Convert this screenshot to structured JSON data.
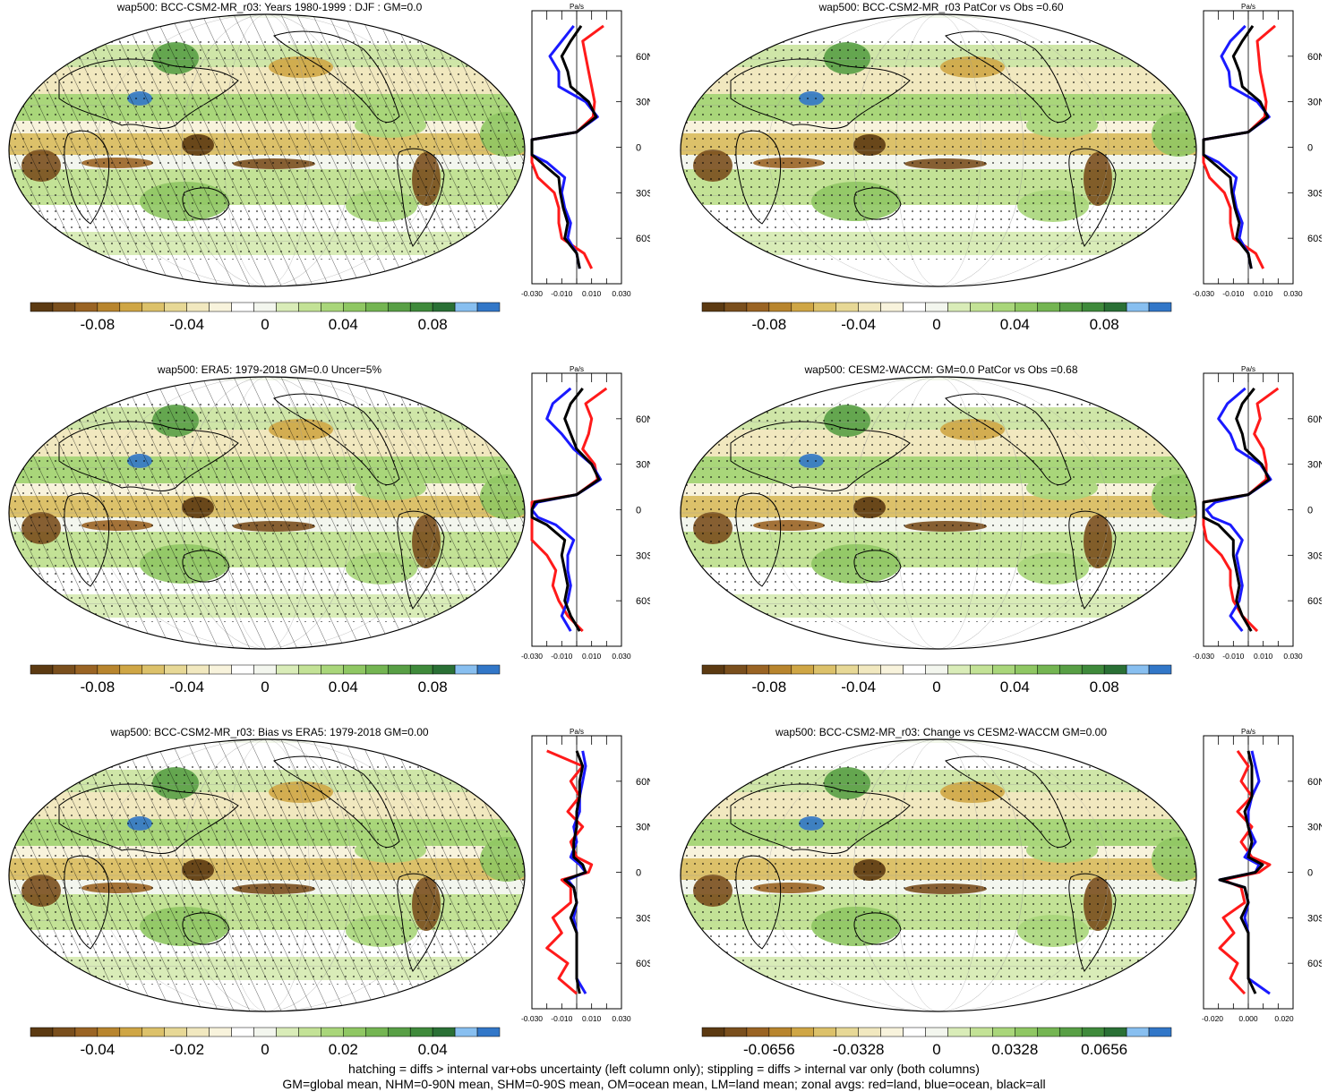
{
  "figure": {
    "footer_lines": [
      "hatching = diffs > internal var+obs uncertainty (left column only); stippling = diffs > internal var only (both columns)",
      "GM=global mean, NHM=0-90N mean, SHM=0-90S mean, OM=ocean mean, LM=land mean; zonal avgs: red=land, blue=ocean, black=all"
    ]
  },
  "colors": {
    "land": "#ff1a1a",
    "ocean": "#1a1aff",
    "all": "#000000",
    "colorbar": [
      "#5c3a12",
      "#7a4f1d",
      "#9a6424",
      "#b8852e",
      "#cfa645",
      "#dcc16a",
      "#e7d896",
      "#f1e8bf",
      "#f8f3dc",
      "#ffffff",
      "#f3f6ee",
      "#d9ecb8",
      "#c3e296",
      "#a9d67a",
      "#8fc763",
      "#74b552",
      "#589f45",
      "#3f8a3b",
      "#2a7035",
      "#88bff0",
      "#3277c8"
    ]
  },
  "chart_data": [
    {
      "type": "heatmap",
      "title": "wap500: BCC-CSM2-MR_r03: Years 1980-1999 : DJF : GM=0.0",
      "colorbar_ticks": [
        "-0.08",
        "-0.04",
        "0",
        "0.04",
        "0.08"
      ],
      "hatched": true,
      "zonal": {
        "unit": "Pa/s",
        "lat_ticks": [
          "60N",
          "30N",
          "0",
          "30S",
          "60S"
        ],
        "x_ticks": [
          "-0.030",
          "-0.010",
          "0.010",
          "0.030"
        ],
        "xlim": [
          -0.03,
          0.03
        ],
        "lat": [
          80,
          70,
          60,
          50,
          40,
          30,
          20,
          10,
          5,
          0,
          -5,
          -10,
          -20,
          -30,
          -40,
          -50,
          -60,
          -70,
          -80
        ],
        "land": [
          0.018,
          0.004,
          0.006,
          0.008,
          0.01,
          0.012,
          0.011,
          0.0,
          -0.04,
          -0.04,
          -0.04,
          -0.032,
          -0.026,
          -0.015,
          -0.012,
          -0.012,
          -0.01,
          0.005,
          0.01
        ],
        "ocean": [
          -0.002,
          -0.01,
          -0.018,
          -0.012,
          -0.012,
          0.006,
          0.014,
          0.0,
          -0.03,
          -0.04,
          -0.04,
          -0.02,
          -0.008,
          -0.01,
          -0.008,
          -0.004,
          -0.006,
          0.0,
          0.002
        ],
        "all": [
          0.003,
          -0.004,
          -0.01,
          -0.006,
          -0.004,
          0.008,
          0.013,
          0.0,
          -0.03,
          -0.04,
          -0.036,
          -0.024,
          -0.012,
          -0.011,
          -0.009,
          -0.006,
          -0.008,
          0.0,
          0.002
        ]
      }
    },
    {
      "type": "heatmap",
      "title": "wap500: BCC-CSM2-MR_r03 PatCor vs Obs =0.60",
      "colorbar_ticks": [
        "-0.08",
        "-0.04",
        "0",
        "0.04",
        "0.08"
      ],
      "hatched": false,
      "zonal": {
        "unit": "Pa/s",
        "lat_ticks": [
          "60N",
          "30N",
          "0",
          "30S",
          "60S"
        ],
        "x_ticks": [
          "-0.030",
          "-0.010",
          "0.010",
          "0.030"
        ],
        "xlim": [
          -0.03,
          0.03
        ],
        "lat": [
          80,
          70,
          60,
          50,
          40,
          30,
          20,
          10,
          5,
          0,
          -5,
          -10,
          -20,
          -30,
          -40,
          -50,
          -60,
          -70,
          -80
        ],
        "land": [
          0.018,
          0.006,
          0.007,
          0.008,
          0.01,
          0.012,
          0.011,
          0.0,
          -0.04,
          -0.04,
          -0.04,
          -0.032,
          -0.026,
          -0.016,
          -0.012,
          -0.012,
          -0.01,
          0.005,
          0.01
        ],
        "ocean": [
          -0.002,
          -0.012,
          -0.018,
          -0.013,
          -0.012,
          0.006,
          0.014,
          0.0,
          -0.03,
          -0.04,
          -0.04,
          -0.02,
          -0.008,
          -0.01,
          -0.008,
          -0.004,
          -0.006,
          0.0,
          0.002
        ],
        "all": [
          0.003,
          -0.004,
          -0.01,
          -0.006,
          -0.004,
          0.008,
          0.013,
          0.0,
          -0.03,
          -0.04,
          -0.036,
          -0.024,
          -0.012,
          -0.011,
          -0.009,
          -0.006,
          -0.008,
          0.0,
          0.002
        ]
      }
    },
    {
      "type": "heatmap",
      "title": "wap500: ERA5: 1979-2018 GM=0.0 Uncer=5%",
      "colorbar_ticks": [
        "-0.08",
        "-0.04",
        "0",
        "0.04",
        "0.08"
      ],
      "hatched": true,
      "zonal": {
        "unit": "Pa/s",
        "lat_ticks": [
          "60N",
          "30N",
          "0",
          "30S",
          "60S"
        ],
        "x_ticks": [
          "-0.030",
          "-0.010",
          "0.010",
          "0.030"
        ],
        "xlim": [
          -0.03,
          0.03
        ],
        "lat": [
          80,
          70,
          60,
          50,
          40,
          30,
          20,
          10,
          5,
          0,
          -5,
          -10,
          -20,
          -30,
          -40,
          -50,
          -60,
          -70,
          -80
        ],
        "land": [
          0.02,
          0.006,
          0.01,
          0.008,
          0.004,
          0.012,
          0.014,
          0.0,
          -0.04,
          -0.04,
          -0.04,
          -0.036,
          -0.03,
          -0.02,
          -0.014,
          -0.016,
          -0.012,
          -0.006,
          0.004
        ],
        "ocean": [
          -0.004,
          -0.016,
          -0.02,
          -0.01,
          -0.002,
          0.01,
          0.016,
          0.0,
          -0.026,
          -0.03,
          -0.026,
          -0.014,
          -0.002,
          -0.006,
          -0.006,
          -0.004,
          -0.006,
          -0.01,
          -0.004
        ],
        "all": [
          0.004,
          -0.004,
          -0.008,
          -0.004,
          0.0,
          0.01,
          0.015,
          0.0,
          -0.028,
          -0.034,
          -0.03,
          -0.02,
          -0.008,
          -0.01,
          -0.008,
          -0.006,
          -0.008,
          -0.004,
          0.002
        ]
      }
    },
    {
      "type": "heatmap",
      "title": "wap500: CESM2-WACCM: GM=0.0 PatCor vs Obs =0.68",
      "colorbar_ticks": [
        "-0.08",
        "-0.04",
        "0",
        "0.04",
        "0.08"
      ],
      "hatched": false,
      "zonal": {
        "unit": "Pa/s",
        "lat_ticks": [
          "60N",
          "30N",
          "0",
          "30S",
          "60S"
        ],
        "x_ticks": [
          "-0.030",
          "-0.010",
          "0.010",
          "0.030"
        ],
        "xlim": [
          -0.03,
          0.03
        ],
        "lat": [
          80,
          70,
          60,
          50,
          40,
          30,
          20,
          10,
          5,
          0,
          -5,
          -10,
          -20,
          -30,
          -40,
          -50,
          -60,
          -70,
          -80
        ],
        "land": [
          0.02,
          0.006,
          0.008,
          0.004,
          0.01,
          0.012,
          0.012,
          0.0,
          -0.04,
          -0.04,
          -0.038,
          -0.034,
          -0.028,
          -0.018,
          -0.012,
          -0.012,
          -0.01,
          -0.004,
          0.006
        ],
        "ocean": [
          -0.002,
          -0.014,
          -0.02,
          -0.012,
          -0.008,
          0.008,
          0.015,
          0.0,
          -0.022,
          -0.028,
          -0.024,
          -0.012,
          -0.004,
          -0.008,
          -0.006,
          -0.004,
          -0.006,
          -0.012,
          -0.004
        ],
        "all": [
          0.004,
          -0.004,
          -0.008,
          -0.004,
          -0.002,
          0.009,
          0.014,
          0.0,
          -0.03,
          -0.034,
          -0.03,
          -0.02,
          -0.01,
          -0.01,
          -0.008,
          -0.006,
          -0.008,
          -0.004,
          0.002
        ]
      }
    },
    {
      "type": "heatmap",
      "title": "wap500: BCC-CSM2-MR_r03: Bias vs ERA5: 1979-2018 GM=0.00",
      "colorbar_ticks": [
        "-0.04",
        "-0.02",
        "0",
        "0.02",
        "0.04"
      ],
      "hatched": true,
      "zonal": {
        "unit": "Pa/s",
        "lat_ticks": [
          "60N",
          "30N",
          "0",
          "30S",
          "60S"
        ],
        "x_ticks": [
          "-0.030",
          "-0.010",
          "0.010",
          "0.030"
        ],
        "xlim": [
          -0.03,
          0.03
        ],
        "lat": [
          80,
          70,
          60,
          50,
          40,
          30,
          20,
          10,
          5,
          0,
          -5,
          -10,
          -20,
          -30,
          -40,
          -50,
          -60,
          -70,
          -80
        ],
        "land": [
          -0.02,
          0.004,
          -0.004,
          0.002,
          -0.006,
          0.004,
          -0.004,
          0.0,
          0.01,
          0.008,
          -0.01,
          -0.004,
          -0.004,
          -0.016,
          -0.01,
          -0.02,
          -0.006,
          -0.012,
          0.0
        ],
        "ocean": [
          0.004,
          0.006,
          0.004,
          0.002,
          0.002,
          -0.002,
          0.0,
          -0.004,
          0.002,
          0.006,
          -0.006,
          -0.002,
          0.0,
          -0.002,
          0.0,
          0.0,
          0.0,
          0.0,
          0.006
        ],
        "all": [
          0.0,
          0.004,
          0.002,
          0.002,
          0.0,
          0.0,
          -0.002,
          -0.002,
          0.004,
          0.006,
          -0.008,
          -0.002,
          0.0,
          -0.004,
          0.0,
          0.0,
          0.0,
          0.0,
          0.002
        ]
      }
    },
    {
      "type": "heatmap",
      "title": "wap500: BCC-CSM2-MR_r03: Change vs CESM2-WACCM GM=0.00",
      "colorbar_ticks": [
        "-0.0656",
        "-0.0328",
        "0",
        "0.0328",
        "0.0656"
      ],
      "hatched": false,
      "zonal": {
        "unit": "Pa/s",
        "lat_ticks": [
          "60N",
          "30N",
          "0",
          "30S",
          "60S"
        ],
        "x_ticks": [
          "-0.020",
          "0.000",
          "0.020"
        ],
        "xlim": [
          -0.025,
          0.025
        ],
        "lat": [
          80,
          70,
          60,
          50,
          40,
          30,
          20,
          10,
          5,
          0,
          -5,
          -10,
          -20,
          -30,
          -40,
          -50,
          -60,
          -70,
          -80
        ],
        "land": [
          -0.006,
          0.0,
          -0.004,
          0.002,
          -0.006,
          0.002,
          -0.004,
          0.002,
          0.012,
          0.006,
          -0.014,
          -0.004,
          -0.002,
          -0.014,
          -0.008,
          -0.016,
          -0.006,
          -0.01,
          -0.002
        ],
        "ocean": [
          0.002,
          0.004,
          0.006,
          0.002,
          0.0,
          0.0,
          0.004,
          -0.002,
          0.006,
          0.004,
          -0.016,
          -0.002,
          0.0,
          -0.002,
          0.0,
          0.0,
          0.0,
          0.0,
          0.012
        ],
        "all": [
          0.0,
          0.002,
          0.002,
          0.002,
          -0.002,
          0.0,
          0.002,
          0.0,
          0.008,
          0.004,
          -0.016,
          -0.002,
          0.0,
          -0.004,
          0.0,
          0.0,
          0.0,
          0.0,
          0.004
        ]
      }
    }
  ]
}
